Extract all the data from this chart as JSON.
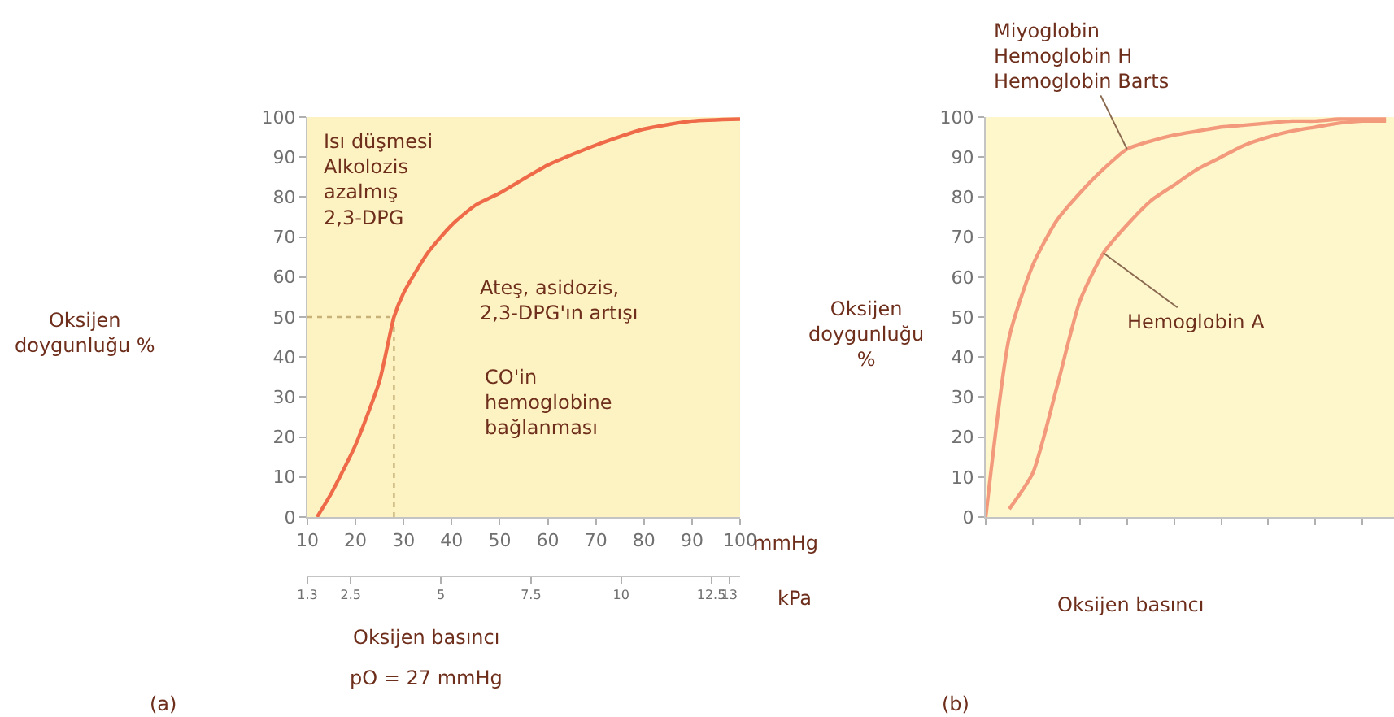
{
  "chart_data": [
    {
      "type": "line",
      "xlabel": "Oksijen basıncı",
      "ylabel": "Oksijen\ndoygunluğu %",
      "annotations": [
        "Isı düşmesi\nAlkolozis\nazalmış\n2,3-DPG",
        "Ateş, asidozis,\n2,3-DPG'ın artışı",
        "CO'in\nhemoglobine\nbağlanması",
        "mmHg",
        "kPa",
        "pO = 27 mmHg",
        "(a)"
      ],
      "x": [
        12,
        15,
        20,
        25,
        28,
        30,
        35,
        40,
        45,
        50,
        60,
        70,
        80,
        90,
        100
      ],
      "series": [
        {
          "color": "#ee6a48",
          "values": [
            0,
            6,
            18,
            34,
            50,
            56,
            66,
            73,
            78,
            81,
            88,
            93,
            97,
            99,
            99.5
          ]
        }
      ],
      "xlim": [
        10,
        100
      ],
      "xticks": [
        10,
        20,
        30,
        40,
        50,
        60,
        70,
        80,
        90,
        100
      ],
      "x2lim": [
        1.3,
        13.3
      ],
      "x2ticks": [
        1.3,
        2.5,
        5,
        7.5,
        10,
        12.5,
        13
      ],
      "ylim": [
        0,
        100
      ],
      "yticks": [
        0,
        10,
        20,
        30,
        40,
        50,
        60,
        70,
        80,
        90,
        100
      ],
      "ref_lines": [
        {
          "axis": "y",
          "value": 50,
          "color": "#c9b27a",
          "line_style": "dotted"
        },
        {
          "axis": "x",
          "value": 28,
          "color": "#c9b27a",
          "line_style": "dotted"
        }
      ]
    },
    {
      "type": "line",
      "xlabel": "Oksijen basıncı",
      "ylabel": "Oksijen\ndoygunluğu\n%",
      "annotations": [
        "(b)"
      ],
      "categories": [
        null,
        null,
        null,
        null,
        null,
        null,
        null,
        null,
        null,
        null,
        null,
        null,
        null,
        null,
        null,
        null,
        null,
        null
      ],
      "series": [
        {
          "name": "Miyoglobin\nHemoglobin H\nHemoglobin Barts",
          "color": "#f39a7c",
          "values": [
            0,
            45,
            63,
            74,
            81,
            87,
            92,
            94,
            95.5,
            96.5,
            97.5,
            98,
            98.5,
            99,
            99,
            99.5,
            99.5,
            99.5
          ]
        },
        {
          "name": "Hemoglobin A",
          "color": "#f39a7c",
          "values": [
            null,
            2,
            11,
            32,
            54,
            66,
            73,
            79,
            83,
            87,
            90,
            93,
            95,
            96.5,
            97.5,
            98.5,
            99,
            99
          ]
        }
      ],
      "ylim": [
        0,
        100
      ],
      "yticks": [
        0,
        10,
        20,
        30,
        40,
        50,
        60,
        70,
        80,
        90,
        100
      ],
      "tick_labels": "y"
    }
  ]
}
